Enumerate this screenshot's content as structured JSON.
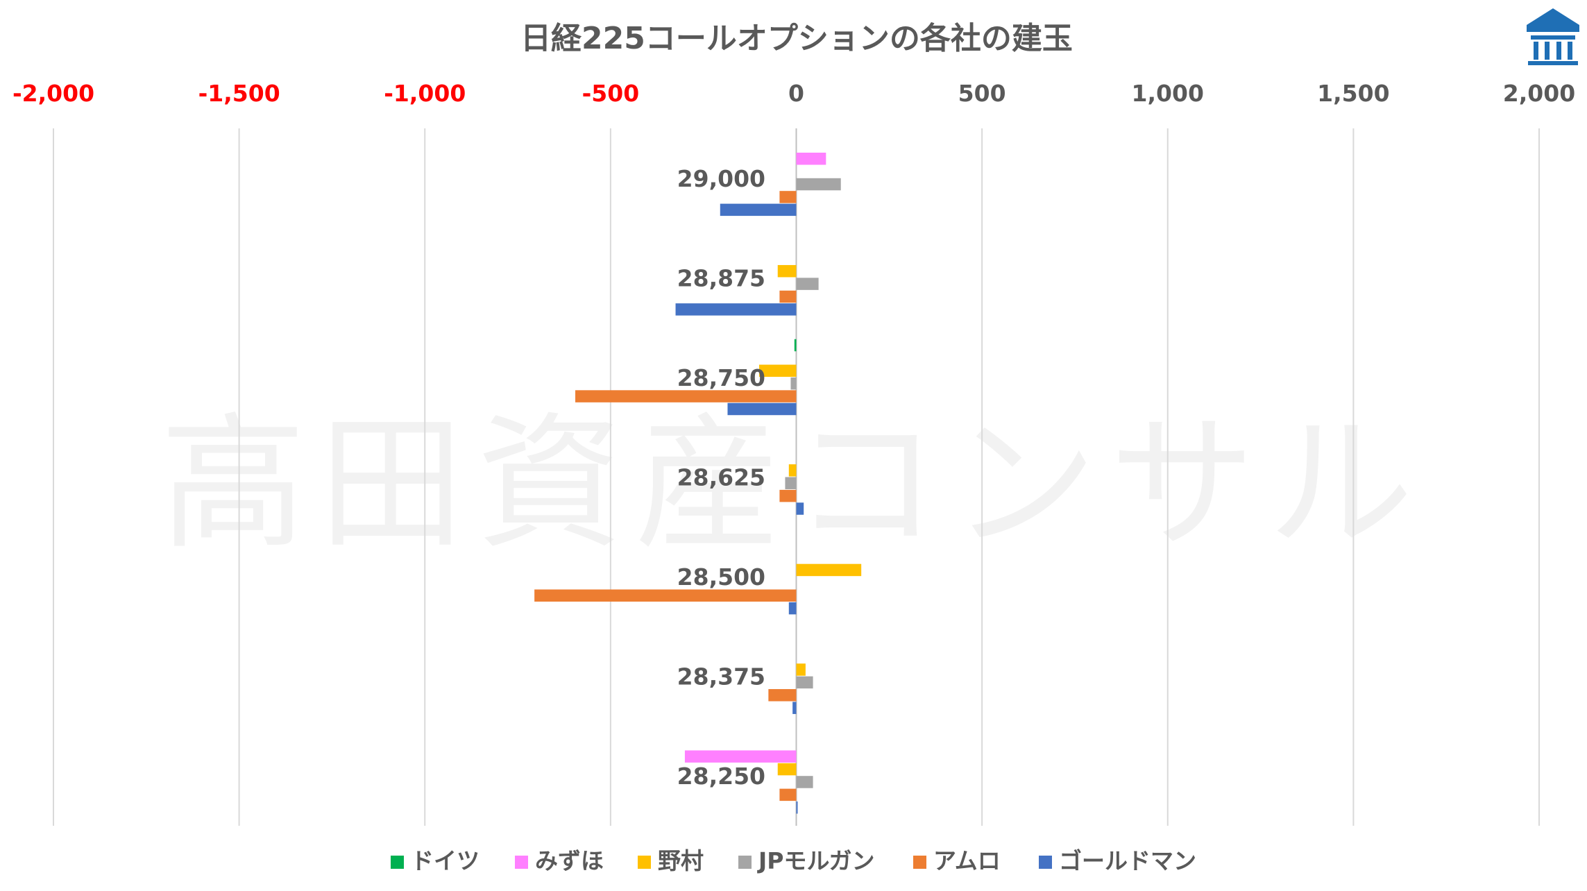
{
  "watermark": "高田資産コンサル",
  "logo": {
    "name": "bank-building-logo",
    "color": "#1f6fb5"
  },
  "chart_data": {
    "type": "bar",
    "orientation": "horizontal",
    "title": "日経225コールオプションの各社の建玉",
    "x_axis_position": "top",
    "xlim": [
      -2000,
      2000
    ],
    "x_ticks": [
      -2000,
      -1500,
      -1000,
      -500,
      0,
      500,
      1000,
      1500,
      2000
    ],
    "x_tick_labels": [
      "-2,000",
      "-1,500",
      "-1,000",
      "-500",
      "0",
      "500",
      "1,000",
      "1,500",
      "2,000"
    ],
    "negative_tick_color": "#ff0000",
    "positive_tick_color": "#595959",
    "gridlines": true,
    "legend_position": "bottom",
    "categories": [
      "29,000",
      "28,875",
      "28,750",
      "28,625",
      "28,500",
      "28,375",
      "28,250"
    ],
    "series": [
      {
        "name": "ドイツ",
        "color": "#00b050",
        "values": [
          0,
          0,
          -5,
          0,
          0,
          0,
          0
        ]
      },
      {
        "name": "みずほ",
        "color": "#ff80ff",
        "values": [
          80,
          0,
          0,
          0,
          0,
          0,
          -300
        ]
      },
      {
        "name": "野村",
        "color": "#ffc000",
        "values": [
          0,
          -50,
          -100,
          -20,
          175,
          25,
          -50
        ]
      },
      {
        "name": "JPモルガン",
        "color": "#a5a5a5",
        "values": [
          120,
          60,
          -15,
          -30,
          0,
          45,
          45
        ]
      },
      {
        "name": "アムロ",
        "color": "#ed7d31",
        "values": [
          -45,
          -45,
          -595,
          -45,
          -705,
          -75,
          -45
        ]
      },
      {
        "name": "ゴールドマン",
        "color": "#4472c4",
        "values": [
          -205,
          -325,
          -185,
          20,
          -20,
          -10,
          3
        ]
      }
    ]
  }
}
